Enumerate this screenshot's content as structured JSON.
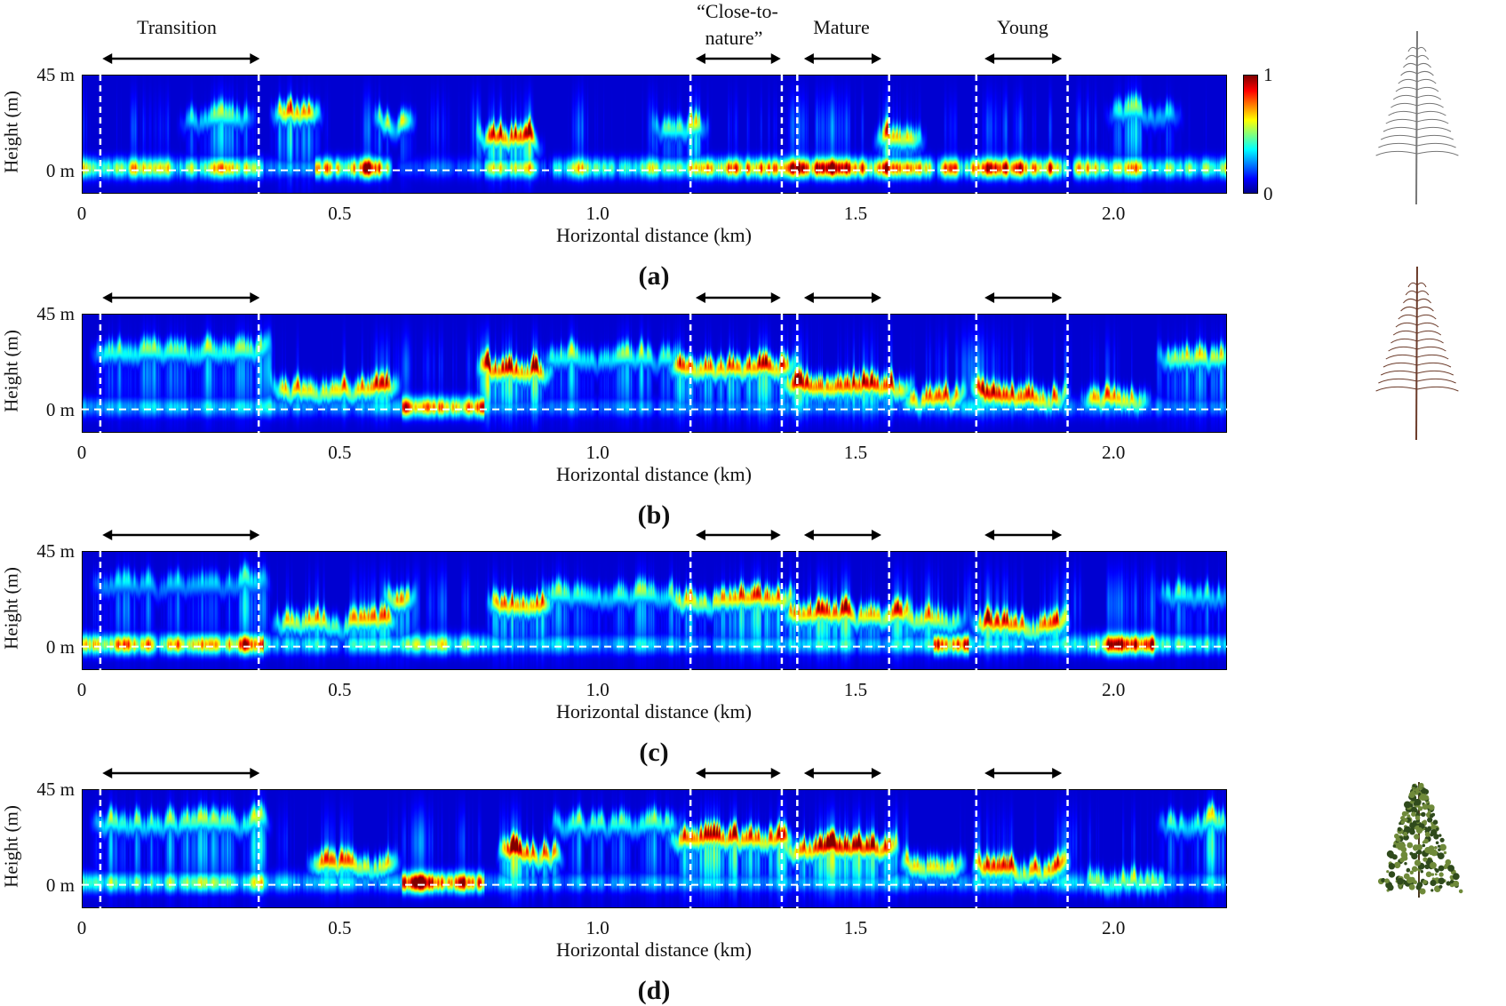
{
  "stands": {
    "transition": "Transition",
    "close_line1": "“Close-to-",
    "close_line2": "nature”",
    "mature": "Mature",
    "young": "Young"
  },
  "colorbar": {
    "max_label": "1",
    "min_label": "0",
    "colormap": "jet"
  },
  "chart_data": [
    {
      "type": "heatmap",
      "panel_label": "(a)",
      "xlabel": "Horizontal distance (km)",
      "ylabel": "Height (m)",
      "yticks": [
        "45 m",
        "0 m"
      ],
      "xticks": [
        "0",
        "0.5",
        "1.0",
        "1.5",
        "2.0"
      ],
      "xtick_values": [
        0,
        0.5,
        1.0,
        1.5,
        2.0
      ],
      "xlim": [
        0,
        2.22
      ],
      "ylim": [
        -11,
        45
      ],
      "zlim": [
        0,
        1
      ],
      "tree": "bare",
      "ground_intensity": [
        [
          0,
          0.35,
          0.7
        ],
        [
          0.35,
          0.45,
          0.3
        ],
        [
          0.45,
          0.6,
          1.0
        ],
        [
          0.6,
          0.78,
          0.2
        ],
        [
          0.78,
          1.2,
          0.6
        ],
        [
          1.2,
          1.9,
          0.95
        ],
        [
          1.9,
          2.22,
          0.7
        ]
      ],
      "layers": [
        [
          0.38,
          0.45,
          28,
          0.9
        ],
        [
          0.58,
          0.63,
          25,
          0.9
        ],
        [
          0.78,
          0.88,
          15,
          0.85
        ],
        [
          0.2,
          0.32,
          25,
          0.4
        ],
        [
          1.12,
          1.2,
          20,
          0.5
        ],
        [
          1.55,
          1.62,
          15,
          0.7
        ],
        [
          2.0,
          2.12,
          28,
          0.4
        ]
      ]
    },
    {
      "type": "heatmap",
      "panel_label": "(b)",
      "xlabel": "Horizontal distance (km)",
      "ylabel": "Height (m)",
      "yticks": [
        "45 m",
        "0 m"
      ],
      "xticks": [
        "0",
        "0.5",
        "1.0",
        "1.5",
        "2.0"
      ],
      "xtick_values": [
        0,
        0.5,
        1.0,
        1.5,
        2.0
      ],
      "xlim": [
        0,
        2.22
      ],
      "ylim": [
        -11,
        45
      ],
      "zlim": [
        0,
        1
      ],
      "tree": "brown",
      "ground_intensity": [
        [
          0,
          0.35,
          0.35
        ],
        [
          0.35,
          0.62,
          0.3
        ],
        [
          0.62,
          0.78,
          0.85
        ],
        [
          0.78,
          2.22,
          0.25
        ]
      ],
      "layers": [
        [
          0.03,
          0.35,
          28,
          0.5
        ],
        [
          0.38,
          0.6,
          10,
          0.85
        ],
        [
          0.78,
          0.9,
          18,
          0.9
        ],
        [
          0.9,
          1.15,
          25,
          0.45
        ],
        [
          1.15,
          1.37,
          20,
          0.9
        ],
        [
          1.37,
          1.6,
          11,
          0.95
        ],
        [
          1.6,
          1.7,
          5,
          0.85
        ],
        [
          1.74,
          1.9,
          6,
          0.95
        ],
        [
          1.95,
          2.06,
          5,
          0.8
        ],
        [
          2.1,
          2.22,
          25,
          0.65
        ]
      ]
    },
    {
      "type": "heatmap",
      "panel_label": "(c)",
      "xlabel": "Horizontal distance (km)",
      "ylabel": "Height (m)",
      "yticks": [
        "45 m",
        "0 m"
      ],
      "xticks": [
        "0",
        "0.5",
        "1.0",
        "1.5",
        "2.0"
      ],
      "xtick_values": [
        0,
        0.5,
        1.0,
        1.5,
        2.0
      ],
      "xlim": [
        0,
        2.22
      ],
      "ylim": [
        -11,
        45
      ],
      "zlim": [
        0,
        1
      ],
      "tree": "none",
      "ground_intensity": [
        [
          0,
          0.35,
          0.85
        ],
        [
          0.35,
          0.62,
          0.4
        ],
        [
          0.62,
          0.78,
          0.55
        ],
        [
          0.78,
          1.65,
          0.35
        ],
        [
          1.65,
          1.72,
          1.0
        ],
        [
          1.72,
          1.95,
          0.35
        ],
        [
          1.95,
          2.08,
          0.9
        ],
        [
          2.08,
          2.22,
          0.5
        ]
      ],
      "layers": [
        [
          0.03,
          0.35,
          30,
          0.3
        ],
        [
          0.38,
          0.6,
          12,
          0.7
        ],
        [
          0.6,
          0.63,
          22,
          0.85
        ],
        [
          0.8,
          0.9,
          20,
          0.9
        ],
        [
          0.9,
          1.15,
          25,
          0.45
        ],
        [
          1.15,
          1.37,
          23,
          0.85
        ],
        [
          1.37,
          1.6,
          15,
          0.8
        ],
        [
          1.6,
          1.7,
          12,
          0.6
        ],
        [
          1.74,
          1.9,
          10,
          0.85
        ],
        [
          2.1,
          2.22,
          25,
          0.4
        ]
      ]
    },
    {
      "type": "heatmap",
      "panel_label": "(d)",
      "xlabel": "Horizontal distance (km)",
      "ylabel": "Height (m)",
      "yticks": [
        "45 m",
        "0 m"
      ],
      "xticks": [
        "0",
        "0.5",
        "1.0",
        "1.5",
        "2.0"
      ],
      "xtick_values": [
        0,
        0.5,
        1.0,
        1.5,
        2.0
      ],
      "xlim": [
        0,
        2.22
      ],
      "ylim": [
        -11,
        45
      ],
      "zlim": [
        0,
        1
      ],
      "tree": "green",
      "ground_intensity": [
        [
          0,
          0.35,
          0.55
        ],
        [
          0.35,
          0.62,
          0.35
        ],
        [
          0.62,
          0.78,
          1.0
        ],
        [
          0.78,
          2.22,
          0.3
        ]
      ],
      "layers": [
        [
          0.03,
          0.35,
          30,
          0.5
        ],
        [
          0.45,
          0.6,
          10,
          0.8
        ],
        [
          0.82,
          0.92,
          15,
          0.95
        ],
        [
          0.92,
          1.15,
          30,
          0.5
        ],
        [
          1.15,
          1.37,
          22,
          0.9
        ],
        [
          1.37,
          1.57,
          17,
          0.95
        ],
        [
          1.6,
          1.7,
          10,
          0.9
        ],
        [
          1.74,
          1.9,
          8,
          0.95
        ],
        [
          1.95,
          2.1,
          2,
          0.6
        ],
        [
          2.1,
          2.22,
          30,
          0.5
        ]
      ]
    }
  ],
  "stand_boundaries_km": [
    0.036,
    0.343,
    1.18,
    1.357,
    1.387,
    1.565,
    1.734,
    1.911
  ],
  "stand_arrows_km": [
    [
      0.04,
      0.345
    ],
    [
      1.19,
      1.355
    ],
    [
      1.4,
      1.55
    ],
    [
      1.75,
      1.9
    ]
  ]
}
